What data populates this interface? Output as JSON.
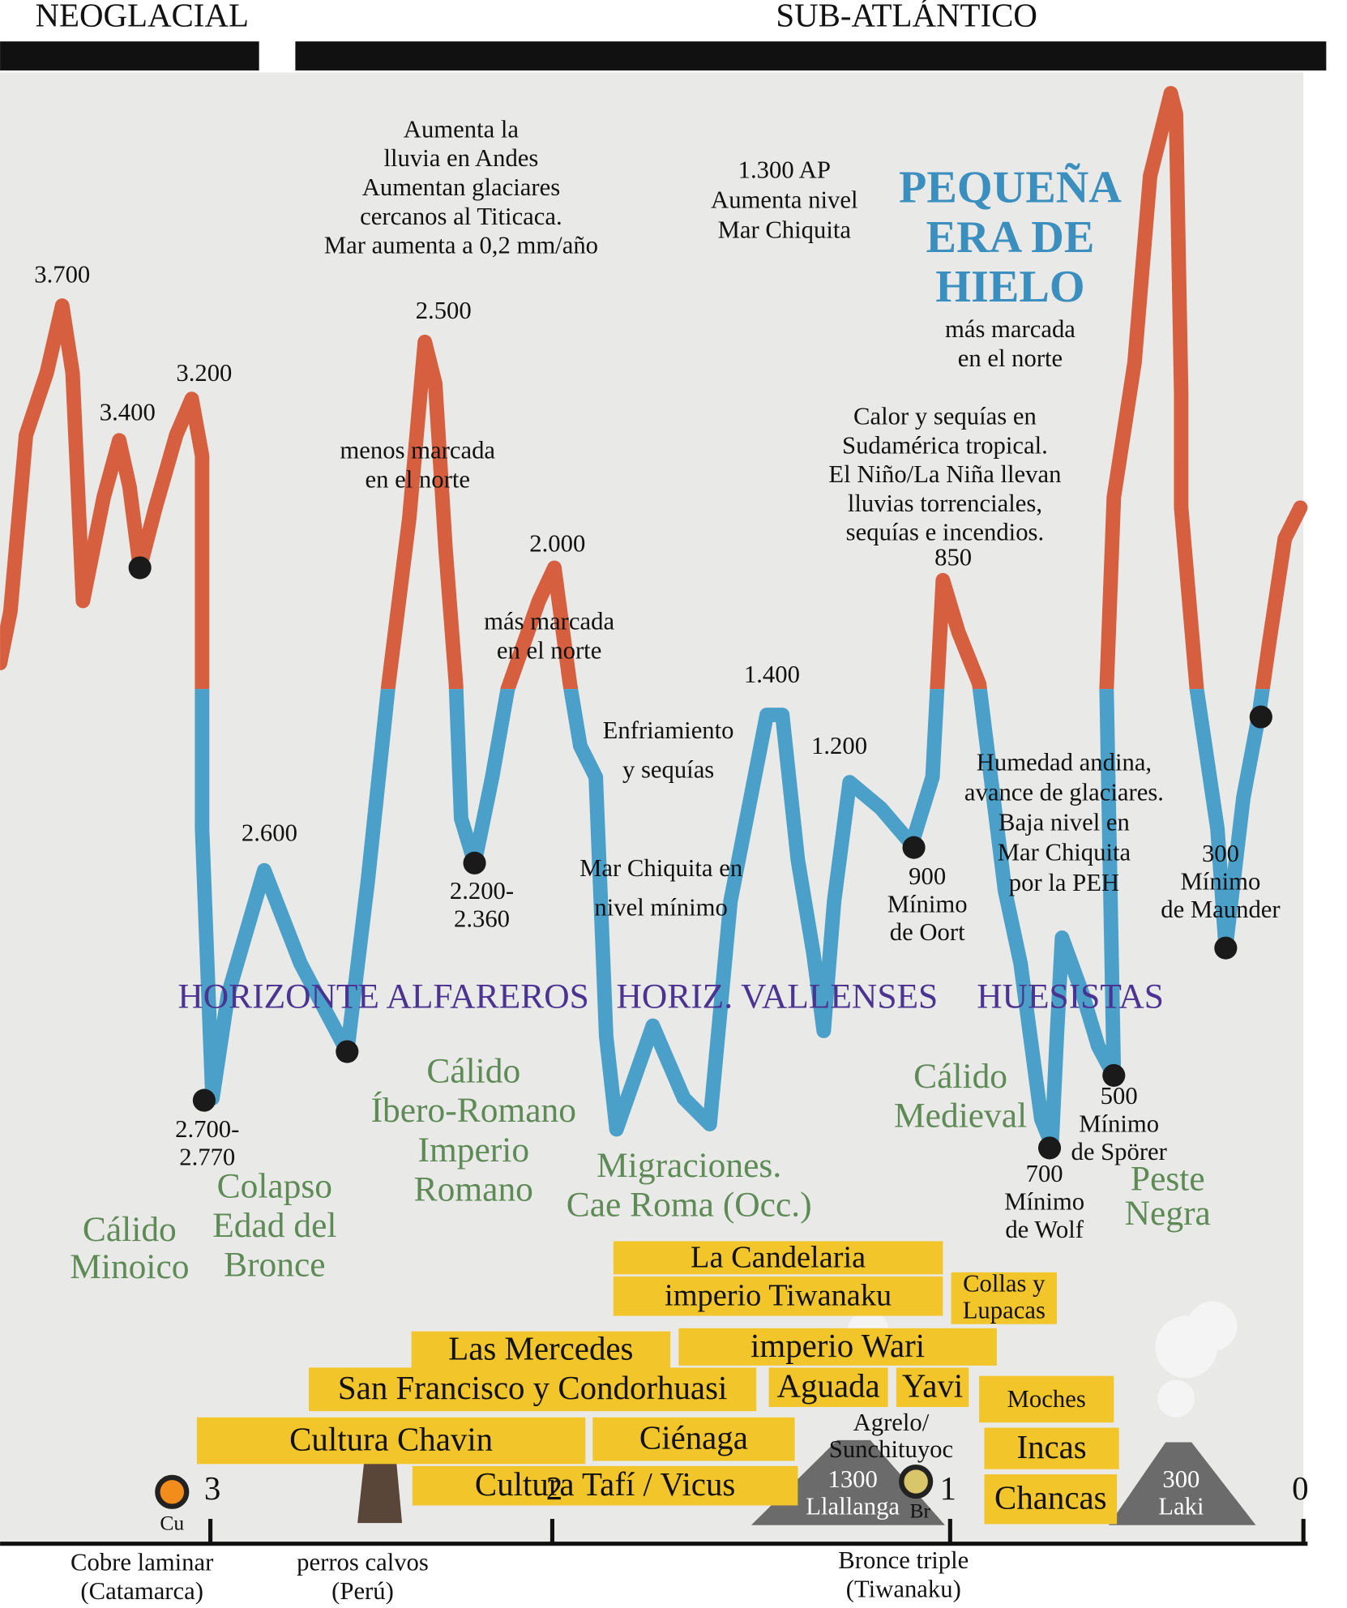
{
  "periods": [
    "NEOGLACIAL",
    "SUB-ATLÁNTICO"
  ],
  "peaks": [
    "3.700",
    "3.400",
    "3.200",
    "2.500",
    "2.000",
    "1.400",
    "1.200",
    "850",
    "2.600"
  ],
  "lows": [
    [
      "2.700-",
      "2.770"
    ],
    [
      "2.200-",
      "2.360"
    ],
    [
      "900",
      "Mínimo",
      "de Oort"
    ],
    [
      "700",
      "Mínimo",
      "de Wolf"
    ],
    [
      "500",
      "Mínimo",
      "de Spörer"
    ],
    [
      "300",
      "Mínimo",
      "de Maunder"
    ]
  ],
  "notes": [
    [
      "Aumenta la",
      "lluvia en Andes",
      "Aumentan glaciares",
      "cercanos al Titicaca.",
      "Mar aumenta a 0,2 mm/año"
    ],
    [
      "1.300 AP",
      "Aumenta nivel",
      "Mar Chiquita"
    ],
    [
      "más marcada",
      "en el norte"
    ],
    [
      "Calor y sequías en",
      "Sudamérica tropical.",
      "El Niño/La Niña llevan",
      "lluvias torrenciales,",
      "sequías e incendios."
    ],
    [
      "menos marcada",
      "en el norte"
    ],
    [
      "más marcada",
      "en el norte"
    ],
    [
      "Enfriamiento",
      "y sequías"
    ],
    [
      "Mar Chiquita en",
      "nivel mínimo"
    ],
    [
      "Humedad andina,",
      "avance de glaciares.",
      "Baja nivel en",
      "Mar Chiquita",
      "por la PEH"
    ]
  ],
  "little_ice_age": [
    "PEQUEÑA",
    "ERA DE",
    "HIELO"
  ],
  "horizons": [
    "HORIZONTE ALFAREROS",
    "HORIZ. VALLENSES",
    "HUESISTAS"
  ],
  "warm_periods": [
    [
      "Cálido",
      "Minoico"
    ],
    [
      "Colapso",
      "Edad del",
      "Bronce"
    ],
    [
      "Cálido",
      "Íbero-Romano",
      "Imperio",
      "Romano"
    ],
    [
      "Migraciones.",
      "Cae Roma (Occ.)"
    ],
    [
      "Cálido",
      "Medieval"
    ],
    [
      "Peste",
      "Negra"
    ]
  ],
  "cultures": [
    "La Candelaria",
    "imperio Tiwanaku",
    [
      "Collas y",
      "Lupacas"
    ],
    "Las Mercedes",
    "imperio Wari",
    "San Francisco y Condorhuasi",
    "Aguada",
    "Yavi",
    "Moches",
    "Cultura Chavin",
    "Ciénaga",
    "Cultura Tafí / Vicus",
    "Incas",
    "Chancas"
  ],
  "agrelo": [
    "Agrelo/",
    "Sunchituyoc"
  ],
  "volcanoes": [
    [
      "1300",
      "Llallanga"
    ],
    [
      "300",
      "Laki"
    ]
  ],
  "axis_ticks": [
    "3",
    "2",
    "1",
    "0"
  ],
  "metals": [
    "Cu",
    "Br"
  ],
  "bottom_labels": [
    [
      "Cobre laminar",
      "(Catamarca)"
    ],
    [
      "perros calvos",
      "(Perú)"
    ],
    [
      "Bronce triple",
      "(Tiwanaku)"
    ]
  ]
}
